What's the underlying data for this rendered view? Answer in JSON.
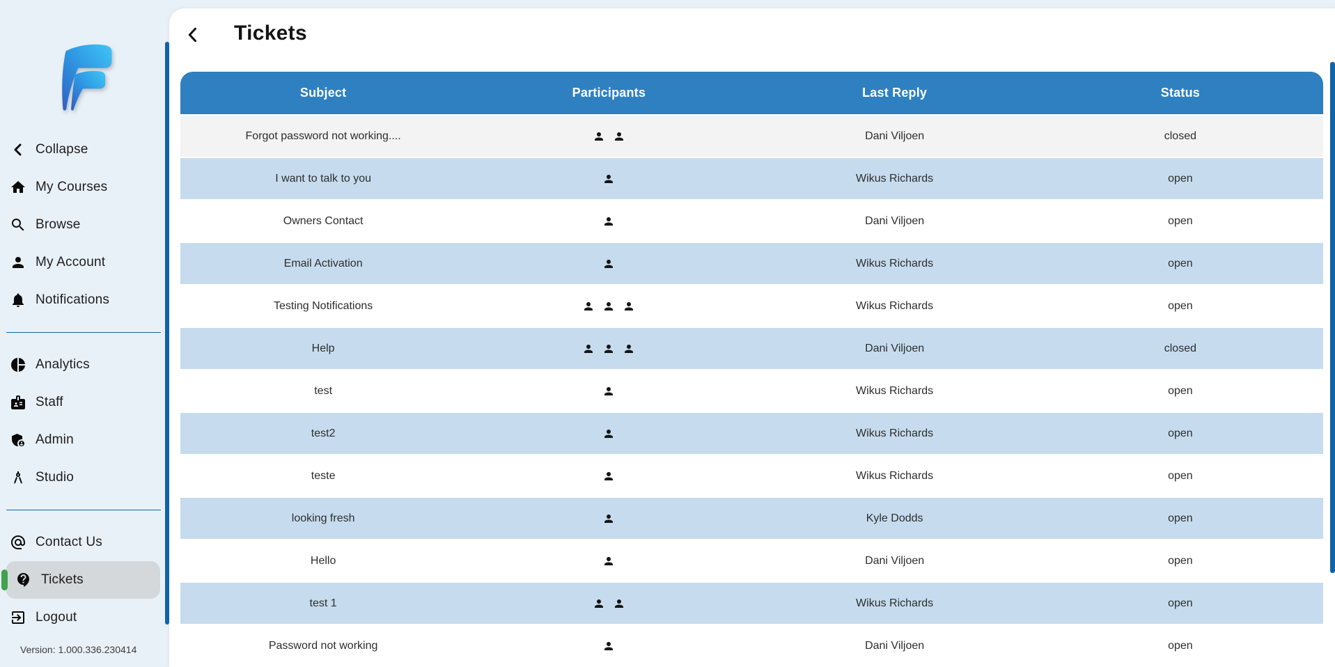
{
  "colors": {
    "sidebar_bg": "#e9f1f8",
    "accent_blue": "#1063a9",
    "header_blue": "#2e80c1",
    "row_blue": "#c6dcee",
    "row_gray": "#f3f3f3",
    "pill_gray": "#d4d8da",
    "green": "#3fa24c"
  },
  "sidebar": {
    "collapse": {
      "label": "Collapse",
      "icon": "chevron-left"
    },
    "sections": [
      {
        "items": [
          {
            "label": "My Courses",
            "icon": "home"
          },
          {
            "label": "Browse",
            "icon": "search"
          },
          {
            "label": "My Account",
            "icon": "person"
          },
          {
            "label": "Notifications",
            "icon": "bell"
          }
        ]
      },
      {
        "items": [
          {
            "label": "Analytics",
            "icon": "pie-chart"
          },
          {
            "label": "Staff",
            "icon": "badge"
          },
          {
            "label": "Admin",
            "icon": "admin-shield"
          },
          {
            "label": "Studio",
            "icon": "compass"
          }
        ]
      },
      {
        "items": [
          {
            "label": "Contact Us",
            "icon": "at-sign"
          },
          {
            "label": "Tickets",
            "icon": "help-bubble",
            "selected": true
          },
          {
            "label": "Logout",
            "icon": "logout"
          }
        ]
      }
    ],
    "version_label": "Version: 1.000.336.230414"
  },
  "header": {
    "title": "Tickets",
    "back_icon": "chevron-left"
  },
  "table": {
    "columns": [
      "Subject",
      "Participants",
      "Last Reply",
      "Status"
    ],
    "rows": [
      {
        "subject": "Forgot password not working....",
        "participants": 2,
        "last_reply": "Dani Viljoen",
        "status": "closed",
        "highlighted": true
      },
      {
        "subject": "I want to talk to you",
        "participants": 1,
        "last_reply": "Wikus Richards",
        "status": "open"
      },
      {
        "subject": "Owners Contact",
        "participants": 1,
        "last_reply": "Dani Viljoen",
        "status": "open"
      },
      {
        "subject": "Email Activation",
        "participants": 1,
        "last_reply": "Wikus Richards",
        "status": "open"
      },
      {
        "subject": "Testing Notifications",
        "participants": 3,
        "last_reply": "Wikus Richards",
        "status": "open"
      },
      {
        "subject": "Help",
        "participants": 3,
        "last_reply": "Dani Viljoen",
        "status": "closed"
      },
      {
        "subject": "test",
        "participants": 1,
        "last_reply": "Wikus Richards",
        "status": "open"
      },
      {
        "subject": "test2",
        "participants": 1,
        "last_reply": "Wikus Richards",
        "status": "open"
      },
      {
        "subject": "teste",
        "participants": 1,
        "last_reply": "Wikus Richards",
        "status": "open"
      },
      {
        "subject": "looking fresh",
        "participants": 1,
        "last_reply": "Kyle Dodds",
        "status": "open"
      },
      {
        "subject": "Hello",
        "participants": 1,
        "last_reply": "Dani Viljoen",
        "status": "open"
      },
      {
        "subject": "test 1",
        "participants": 2,
        "last_reply": "Wikus Richards",
        "status": "open"
      },
      {
        "subject": "Password not working",
        "participants": 1,
        "last_reply": "Dani Viljoen",
        "status": "open"
      }
    ]
  }
}
